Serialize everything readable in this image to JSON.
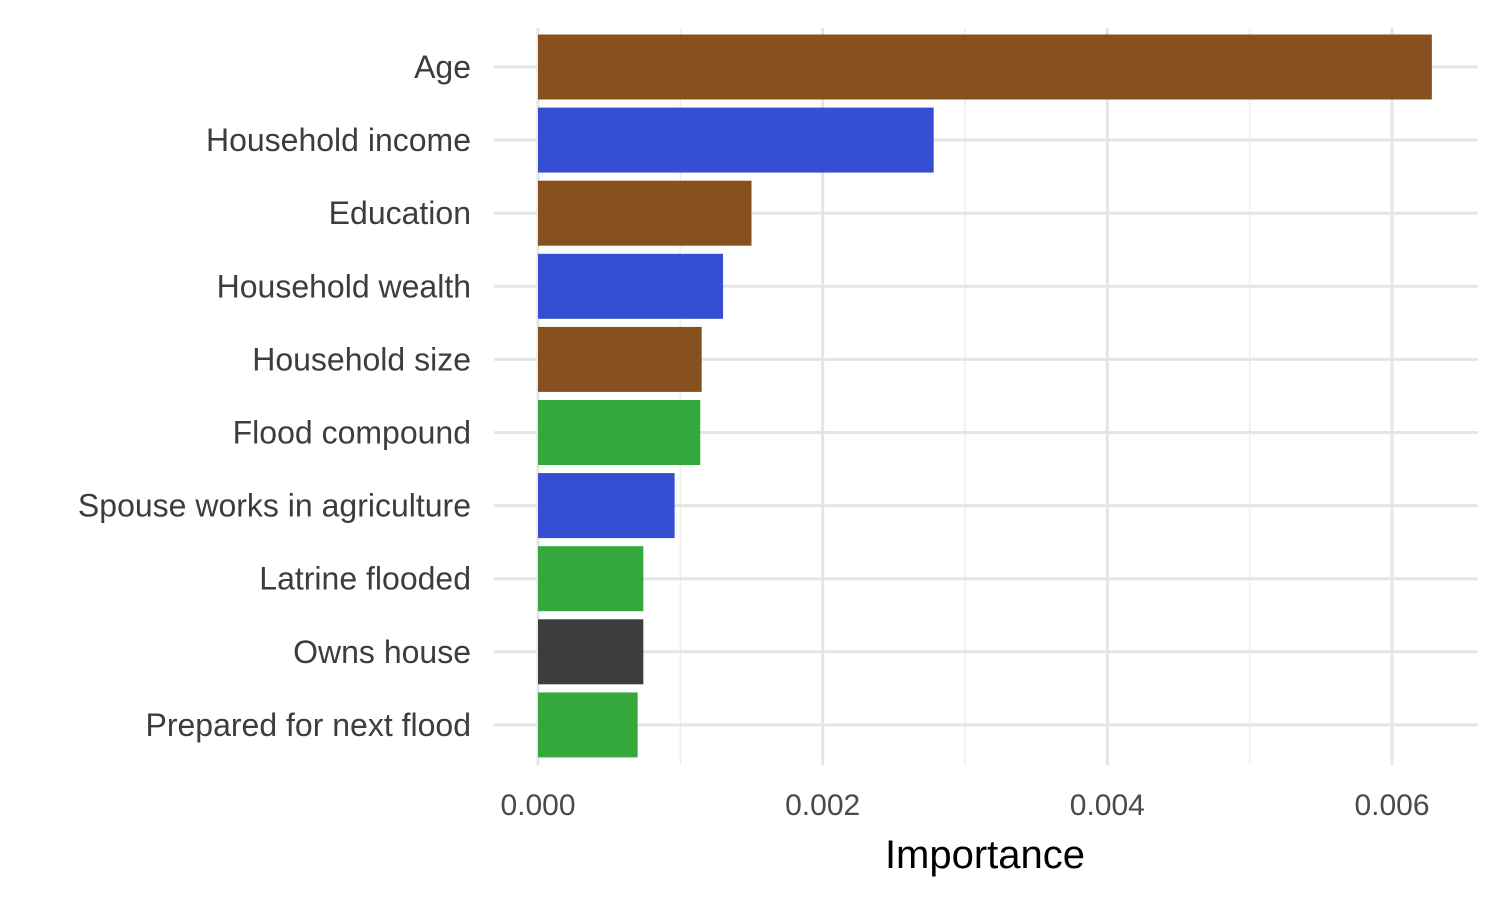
{
  "chart_data": {
    "type": "bar",
    "orientation": "horizontal",
    "title": "",
    "xlabel": "Importance",
    "ylabel": "",
    "xlim": [
      0,
      0.0066
    ],
    "x_ticks": [
      {
        "value": 0.0,
        "label": "0.000"
      },
      {
        "value": 0.002,
        "label": "0.002"
      },
      {
        "value": 0.004,
        "label": "0.004"
      },
      {
        "value": 0.006,
        "label": "0.006"
      }
    ],
    "grid": true,
    "legend": "none",
    "categories": [
      "Age",
      "Household income",
      "Education",
      "Household wealth",
      "Household size",
      "Flood compound",
      "Spouse works in agriculture",
      "Latrine flooded",
      "Owns house",
      "Prepared for next flood"
    ],
    "values": [
      0.00628,
      0.00278,
      0.0015,
      0.0013,
      0.00115,
      0.00114,
      0.00096,
      0.00074,
      0.00074,
      0.0007
    ],
    "colors": [
      "#87511f",
      "#364ed1",
      "#87511f",
      "#364ed1",
      "#87511f",
      "#35a83c",
      "#364ed1",
      "#35a83c",
      "#3d3d3b",
      "#35a83c"
    ]
  }
}
